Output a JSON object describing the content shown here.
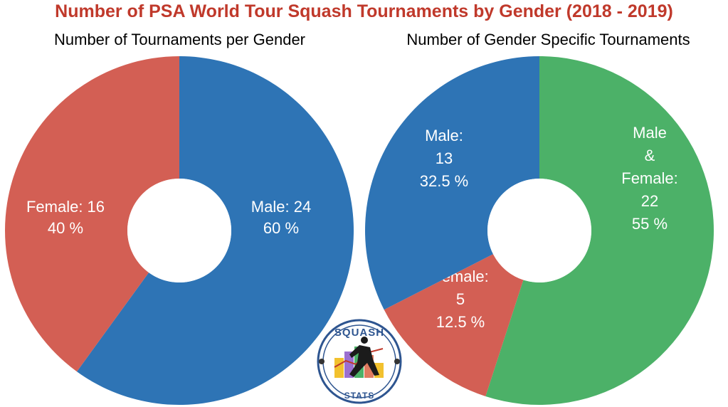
{
  "title": "Number of PSA World Tour Squash Tournaments by Gender (2018 - 2019)",
  "colors": {
    "title": "#c0392b",
    "male": "#2e74b5",
    "female": "#d35f54",
    "both": "#4cb168"
  },
  "chart_data": [
    {
      "type": "pie",
      "donut": true,
      "title": "Number of Tournaments per Gender",
      "slices": [
        {
          "label": "Male",
          "value": 24,
          "percent": "60 %",
          "color": "#2e74b5",
          "text_lines": [
            "Male: 24",
            "60 %"
          ]
        },
        {
          "label": "Female",
          "value": 16,
          "percent": "40 %",
          "color": "#d35f54",
          "text_lines": [
            "Female: 16",
            "40 %"
          ]
        }
      ]
    },
    {
      "type": "pie",
      "donut": true,
      "title": "Number of Gender Specific Tournaments",
      "slices": [
        {
          "label": "Male & Female",
          "value": 22,
          "percent": "55 %",
          "color": "#4cb168",
          "text_lines": [
            "Male",
            "&",
            "Female:",
            "22",
            "55 %"
          ]
        },
        {
          "label": "Female",
          "value": 5,
          "percent": "12.5 %",
          "color": "#d35f54",
          "text_lines": [
            "Female:",
            "5",
            "12.5 %"
          ]
        },
        {
          "label": "Male",
          "value": 13,
          "percent": "32.5 %",
          "color": "#2e74b5",
          "text_lines": [
            "Male:",
            "13",
            "32.5 %"
          ]
        }
      ]
    }
  ],
  "logo": {
    "top_text": "SQUASH",
    "bottom_text": "STATS"
  }
}
